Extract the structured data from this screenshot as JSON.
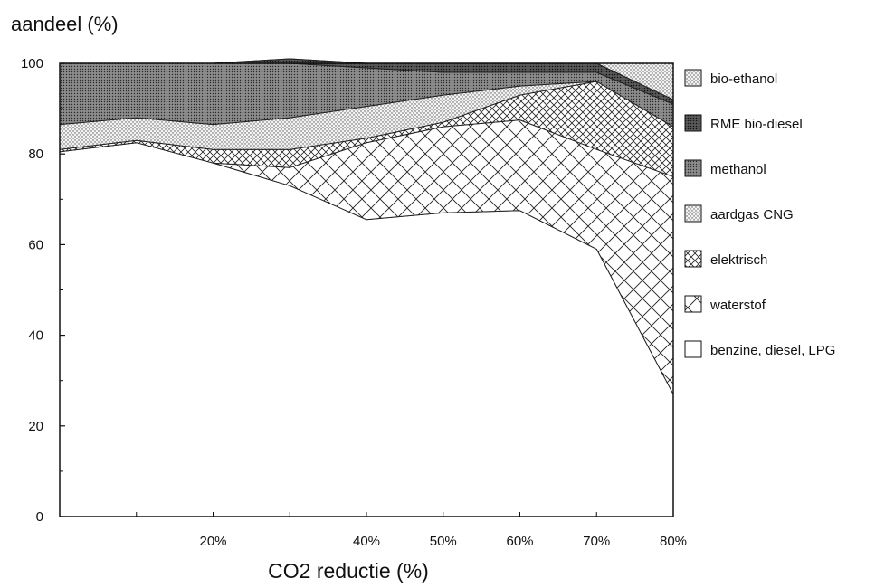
{
  "chart_data": {
    "type": "area",
    "stacked": true,
    "title": "",
    "ylabel": "aandeel (%)",
    "xlabel": "CO2 reductie (%)",
    "ylim": [
      0,
      100
    ],
    "y_ticks": [
      "0",
      "20",
      "40",
      "60",
      "80",
      "100"
    ],
    "x_tick_labels": [
      "20%",
      "40%",
      "50%",
      "60%",
      "70%",
      "80%"
    ],
    "x": [
      0,
      10,
      20,
      30,
      40,
      50,
      60,
      70,
      80
    ],
    "series": [
      {
        "name": "benzine, diesel, LPG",
        "pattern": "none",
        "values": [
          80.5,
          82.5,
          78,
          73,
          65.5,
          67,
          67.5,
          59,
          27
        ]
      },
      {
        "name": "waterstof",
        "pattern": "cross-wide",
        "values": [
          0,
          0,
          0,
          4,
          17,
          19,
          20,
          22,
          48
        ]
      },
      {
        "name": "elektrisch",
        "pattern": "cross-fine",
        "values": [
          0.5,
          0.5,
          3,
          4,
          1,
          1,
          5.5,
          15,
          11
        ]
      },
      {
        "name": "aardgas CNG",
        "pattern": "dots-light",
        "values": [
          5.5,
          5,
          5.5,
          7,
          7,
          6,
          2,
          0,
          0
        ]
      },
      {
        "name": "methanol",
        "pattern": "dots-dark",
        "values": [
          13.5,
          12,
          13.5,
          12,
          8.5,
          5,
          3,
          2,
          5
        ]
      },
      {
        "name": "RME bio-diesel",
        "pattern": "dots-darker",
        "values": [
          0,
          0,
          0,
          1,
          1,
          2,
          2,
          2,
          1
        ]
      },
      {
        "name": "bio-ethanol",
        "pattern": "dots-light",
        "values": [
          0,
          0,
          0,
          0,
          0,
          0,
          0,
          0,
          8
        ]
      }
    ],
    "legend_position": "right",
    "grid": false
  }
}
